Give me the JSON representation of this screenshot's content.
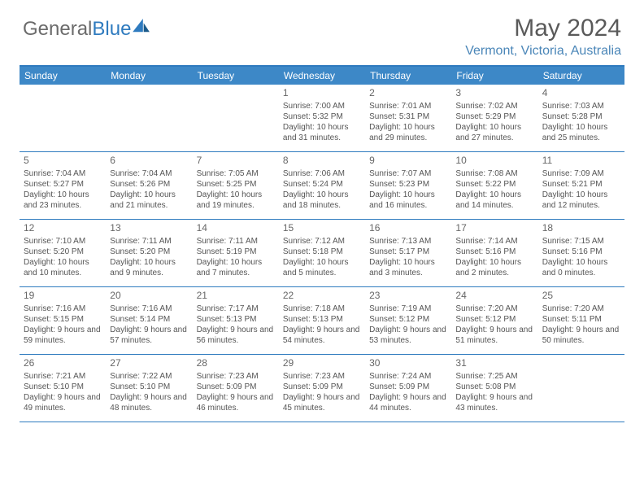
{
  "logo": {
    "text1": "General",
    "text2": "Blue"
  },
  "title": "May 2024",
  "location": "Vermont, Victoria, Australia",
  "weekdays": [
    "Sunday",
    "Monday",
    "Tuesday",
    "Wednesday",
    "Thursday",
    "Friday",
    "Saturday"
  ],
  "colors": {
    "header_bg": "#3d88c7",
    "accent": "#2f7bbf",
    "logo_gray": "#6b6b6b",
    "text": "#555555",
    "location": "#4a86b8"
  },
  "weeks": [
    [
      null,
      null,
      null,
      {
        "d": "1",
        "sr": "7:00 AM",
        "ss": "5:32 PM",
        "dl": "10 hours and 31 minutes."
      },
      {
        "d": "2",
        "sr": "7:01 AM",
        "ss": "5:31 PM",
        "dl": "10 hours and 29 minutes."
      },
      {
        "d": "3",
        "sr": "7:02 AM",
        "ss": "5:29 PM",
        "dl": "10 hours and 27 minutes."
      },
      {
        "d": "4",
        "sr": "7:03 AM",
        "ss": "5:28 PM",
        "dl": "10 hours and 25 minutes."
      }
    ],
    [
      {
        "d": "5",
        "sr": "7:04 AM",
        "ss": "5:27 PM",
        "dl": "10 hours and 23 minutes."
      },
      {
        "d": "6",
        "sr": "7:04 AM",
        "ss": "5:26 PM",
        "dl": "10 hours and 21 minutes."
      },
      {
        "d": "7",
        "sr": "7:05 AM",
        "ss": "5:25 PM",
        "dl": "10 hours and 19 minutes."
      },
      {
        "d": "8",
        "sr": "7:06 AM",
        "ss": "5:24 PM",
        "dl": "10 hours and 18 minutes."
      },
      {
        "d": "9",
        "sr": "7:07 AM",
        "ss": "5:23 PM",
        "dl": "10 hours and 16 minutes."
      },
      {
        "d": "10",
        "sr": "7:08 AM",
        "ss": "5:22 PM",
        "dl": "10 hours and 14 minutes."
      },
      {
        "d": "11",
        "sr": "7:09 AM",
        "ss": "5:21 PM",
        "dl": "10 hours and 12 minutes."
      }
    ],
    [
      {
        "d": "12",
        "sr": "7:10 AM",
        "ss": "5:20 PM",
        "dl": "10 hours and 10 minutes."
      },
      {
        "d": "13",
        "sr": "7:11 AM",
        "ss": "5:20 PM",
        "dl": "10 hours and 9 minutes."
      },
      {
        "d": "14",
        "sr": "7:11 AM",
        "ss": "5:19 PM",
        "dl": "10 hours and 7 minutes."
      },
      {
        "d": "15",
        "sr": "7:12 AM",
        "ss": "5:18 PM",
        "dl": "10 hours and 5 minutes."
      },
      {
        "d": "16",
        "sr": "7:13 AM",
        "ss": "5:17 PM",
        "dl": "10 hours and 3 minutes."
      },
      {
        "d": "17",
        "sr": "7:14 AM",
        "ss": "5:16 PM",
        "dl": "10 hours and 2 minutes."
      },
      {
        "d": "18",
        "sr": "7:15 AM",
        "ss": "5:16 PM",
        "dl": "10 hours and 0 minutes."
      }
    ],
    [
      {
        "d": "19",
        "sr": "7:16 AM",
        "ss": "5:15 PM",
        "dl": "9 hours and 59 minutes."
      },
      {
        "d": "20",
        "sr": "7:16 AM",
        "ss": "5:14 PM",
        "dl": "9 hours and 57 minutes."
      },
      {
        "d": "21",
        "sr": "7:17 AM",
        "ss": "5:13 PM",
        "dl": "9 hours and 56 minutes."
      },
      {
        "d": "22",
        "sr": "7:18 AM",
        "ss": "5:13 PM",
        "dl": "9 hours and 54 minutes."
      },
      {
        "d": "23",
        "sr": "7:19 AM",
        "ss": "5:12 PM",
        "dl": "9 hours and 53 minutes."
      },
      {
        "d": "24",
        "sr": "7:20 AM",
        "ss": "5:12 PM",
        "dl": "9 hours and 51 minutes."
      },
      {
        "d": "25",
        "sr": "7:20 AM",
        "ss": "5:11 PM",
        "dl": "9 hours and 50 minutes."
      }
    ],
    [
      {
        "d": "26",
        "sr": "7:21 AM",
        "ss": "5:10 PM",
        "dl": "9 hours and 49 minutes."
      },
      {
        "d": "27",
        "sr": "7:22 AM",
        "ss": "5:10 PM",
        "dl": "9 hours and 48 minutes."
      },
      {
        "d": "28",
        "sr": "7:23 AM",
        "ss": "5:09 PM",
        "dl": "9 hours and 46 minutes."
      },
      {
        "d": "29",
        "sr": "7:23 AM",
        "ss": "5:09 PM",
        "dl": "9 hours and 45 minutes."
      },
      {
        "d": "30",
        "sr": "7:24 AM",
        "ss": "5:09 PM",
        "dl": "9 hours and 44 minutes."
      },
      {
        "d": "31",
        "sr": "7:25 AM",
        "ss": "5:08 PM",
        "dl": "9 hours and 43 minutes."
      },
      null
    ]
  ]
}
